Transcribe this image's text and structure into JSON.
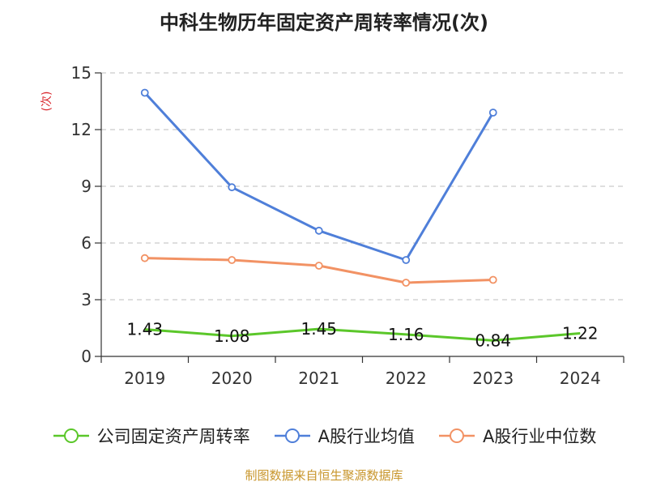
{
  "title": "中科生物历年固定资产周转率情况(次)",
  "source_text": "制图数据来自恒生聚源数据库",
  "colors": {
    "company": "#5bc72a",
    "industry_avg": "#4f7fd9",
    "industry_median": "#f29264",
    "unit_label": "#d9262c",
    "grid": "#c9c9c9",
    "axis": "#333333"
  },
  "chart_data": {
    "type": "line",
    "categories": [
      "2019",
      "2020",
      "2021",
      "2022",
      "2023",
      "2024"
    ],
    "y_unit": "(次)",
    "ylim": [
      0,
      15
    ],
    "yticks": [
      0,
      3,
      6,
      9,
      12,
      15
    ],
    "grid": true,
    "legend_position": "bottom",
    "series": [
      {
        "name": "公司固定资产周转率",
        "color": "#5bc72a",
        "values": [
          1.43,
          1.08,
          1.45,
          1.16,
          0.84,
          1.22
        ],
        "labels": [
          "1.43",
          "1.08",
          "1.45",
          "1.16",
          "0.84",
          "1.22"
        ],
        "show_markers": false
      },
      {
        "name": "A股行业均值",
        "color": "#4f7fd9",
        "values": [
          13.95,
          8.95,
          6.65,
          5.1,
          12.9,
          null
        ],
        "show_markers": true
      },
      {
        "name": "A股行业中位数",
        "color": "#f29264",
        "values": [
          5.2,
          5.1,
          4.8,
          3.9,
          4.05,
          null
        ],
        "show_markers": true
      }
    ]
  }
}
